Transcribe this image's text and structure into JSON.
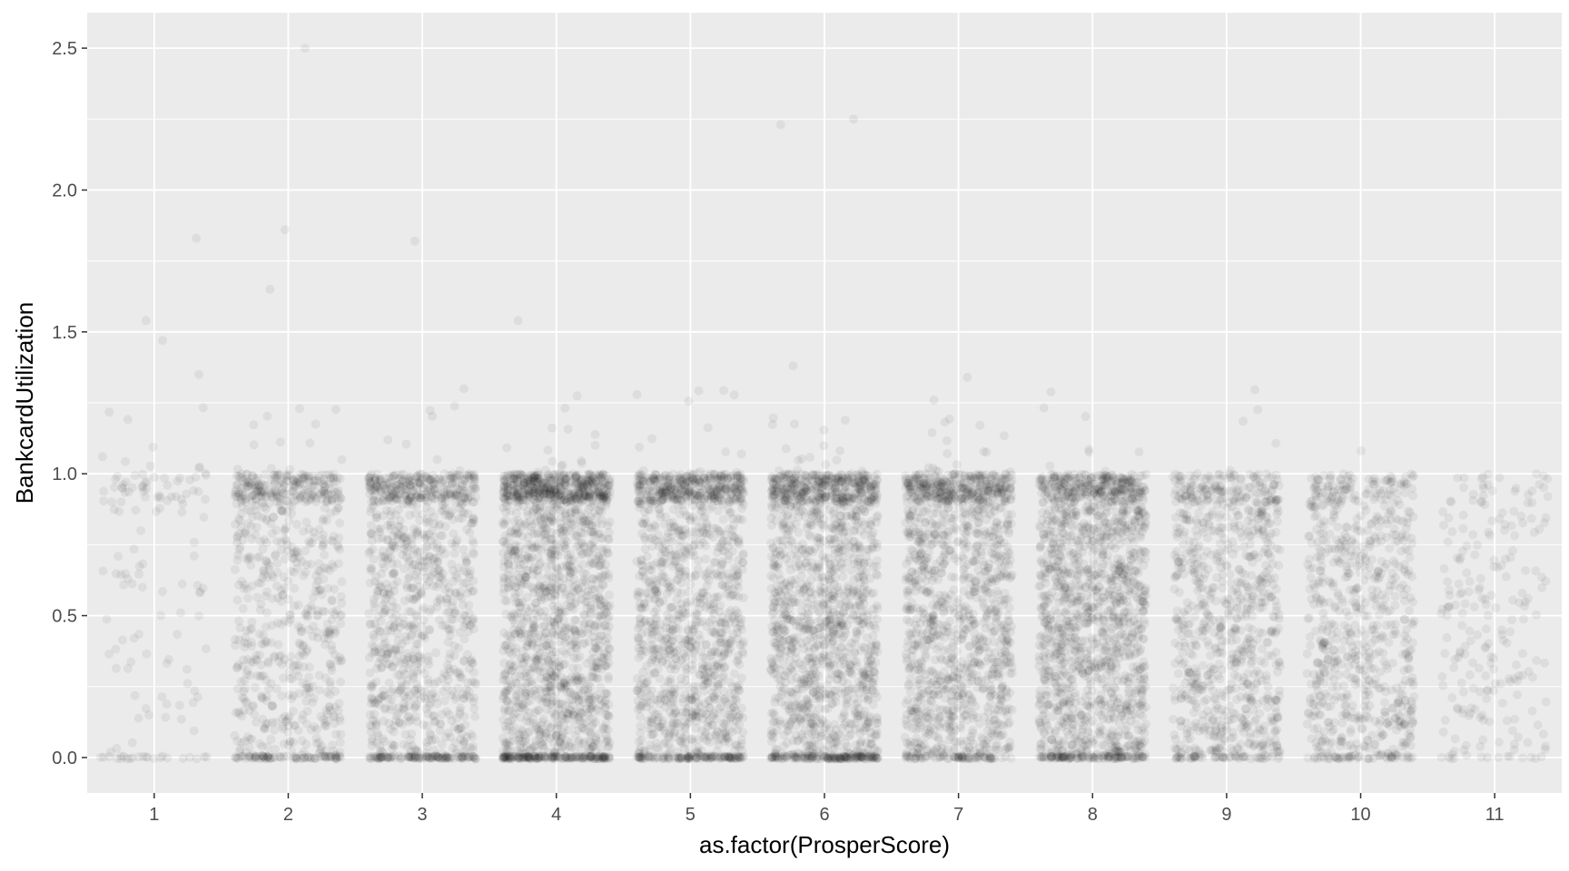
{
  "chart_data": {
    "type": "scatter",
    "xlabel": "as.factor(ProsperScore)",
    "ylabel": "BankcardUtilization",
    "categories": [
      "1",
      "2",
      "3",
      "4",
      "5",
      "6",
      "7",
      "8",
      "9",
      "10",
      "11"
    ],
    "ylim": [
      -0.125,
      2.625
    ],
    "yticks": [
      0.0,
      0.5,
      1.0,
      1.5,
      2.0,
      2.5
    ],
    "ytick_labels": [
      "0.0",
      "0.5",
      "1.0",
      "1.5",
      "2.0",
      "2.5"
    ],
    "jitter_width": 0.4,
    "point_color": "#000000",
    "point_alpha": 0.06,
    "grid": true,
    "panel_background": "#ebebeb",
    "grid_color": "#ffffff",
    "series": [
      {
        "category": "1",
        "approx_points": 700,
        "share_at_zero": 0.12,
        "share_near_one": 0.3,
        "share_above_one": 0.06
      },
      {
        "category": "2",
        "approx_points": 4000,
        "share_at_zero": 0.1,
        "share_near_one": 0.2,
        "share_above_one": 0.015
      },
      {
        "category": "3",
        "approx_points": 5500,
        "share_at_zero": 0.09,
        "share_near_one": 0.2,
        "share_above_one": 0.012
      },
      {
        "category": "4",
        "approx_points": 9000,
        "share_at_zero": 0.09,
        "share_near_one": 0.22,
        "share_above_one": 0.01
      },
      {
        "category": "5",
        "approx_points": 7000,
        "share_at_zero": 0.08,
        "share_near_one": 0.18,
        "share_above_one": 0.01
      },
      {
        "category": "6",
        "approx_points": 8000,
        "share_at_zero": 0.08,
        "share_near_one": 0.16,
        "share_above_one": 0.008
      },
      {
        "category": "7",
        "approx_points": 7000,
        "share_at_zero": 0.06,
        "share_near_one": 0.14,
        "share_above_one": 0.006
      },
      {
        "category": "8",
        "approx_points": 8000,
        "share_at_zero": 0.05,
        "share_near_one": 0.12,
        "share_above_one": 0.004
      },
      {
        "category": "9",
        "approx_points": 4500,
        "share_at_zero": 0.04,
        "share_near_one": 0.08,
        "share_above_one": 0.004
      },
      {
        "category": "10",
        "approx_points": 3800,
        "share_at_zero": 0.05,
        "share_near_one": 0.06,
        "share_above_one": 0.003
      },
      {
        "category": "11",
        "approx_points": 1100,
        "share_at_zero": 0.05,
        "share_near_one": 0.05,
        "share_above_one": 0.003
      }
    ],
    "outliers": [
      {
        "category": "2",
        "y": 2.5
      },
      {
        "category": "6",
        "y": 2.25
      },
      {
        "category": "6",
        "y": 2.23
      },
      {
        "category": "1",
        "y": 1.83
      },
      {
        "category": "2",
        "y": 1.86
      },
      {
        "category": "3",
        "y": 1.82
      },
      {
        "category": "2",
        "y": 1.65
      },
      {
        "category": "1",
        "y": 1.54
      },
      {
        "category": "4",
        "y": 1.54
      },
      {
        "category": "1",
        "y": 1.47
      },
      {
        "category": "6",
        "y": 1.38
      },
      {
        "category": "7",
        "y": 1.34
      },
      {
        "category": "1",
        "y": 1.35
      }
    ]
  }
}
